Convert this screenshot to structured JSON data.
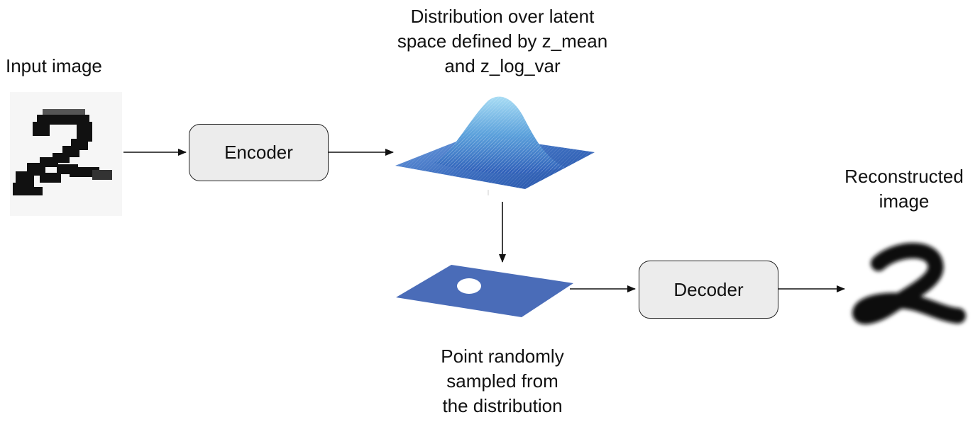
{
  "labels": {
    "input_image": "Input image",
    "distribution": [
      "Distribution over latent",
      "space defined by z_mean",
      "and z_log_var"
    ],
    "point_sampled": [
      "Point randomly",
      "sampled from",
      "the distribution"
    ],
    "reconstructed": [
      "Reconstructed",
      "image"
    ]
  },
  "boxes": {
    "encoder": "Encoder",
    "decoder": "Decoder"
  },
  "icons": {
    "input_digit": "handwritten-digit-2-pixelated-icon",
    "gaussian_surface": "gaussian-surface-3d-icon",
    "latent_plane": "latent-plane-with-sampled-point-icon",
    "reconstructed_digit": "handwritten-digit-2-blurred-icon"
  },
  "colors": {
    "gaussian_blue": "#3d6fc0",
    "plane_blue": "#4a6cb8",
    "box_fill": "#ececec",
    "ink": "#111111"
  }
}
